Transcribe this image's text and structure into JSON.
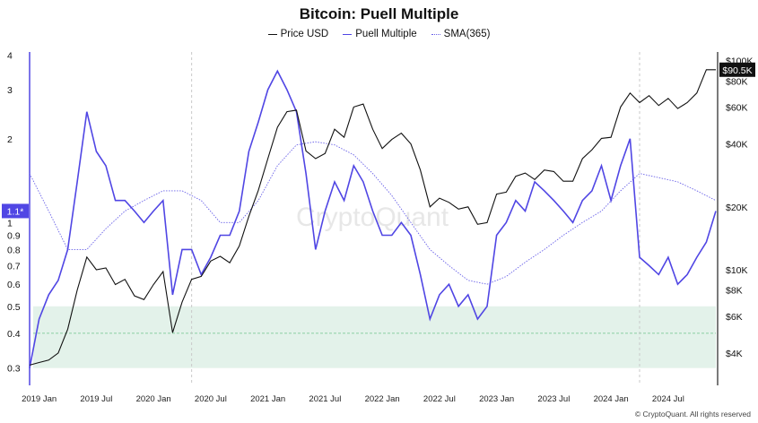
{
  "chart_data": {
    "type": "line",
    "title": "Bitcoin: Puell Multiple",
    "watermark": "CryptoQuant",
    "credit": "© CryptoQuant. All rights reserved",
    "legend": [
      {
        "name": "Price USD",
        "color": "#111111",
        "style": "solid"
      },
      {
        "name": "Puell Multiple",
        "color": "#5046e4",
        "style": "solid"
      },
      {
        "name": "SMA(365)",
        "color": "#6a62e8",
        "style": "dotted"
      }
    ],
    "x_ticks": [
      "2019 Jan",
      "2019 Jul",
      "2020 Jan",
      "2020 Jul",
      "2021 Jan",
      "2021 Jul",
      "2022 Jan",
      "2022 Jul",
      "2023 Jan",
      "2023 Jul",
      "2024 Jan",
      "2024 Jul"
    ],
    "x_range": [
      "2018-12",
      "2024-12"
    ],
    "left_axis": {
      "scale": "log",
      "range": [
        0.26,
        4.1
      ],
      "ticks": [
        "0.3",
        "0.4",
        "0.5",
        "0.6",
        "0.7",
        "0.8",
        "0.9",
        "1",
        "2",
        "3",
        "4"
      ]
    },
    "right_axis": {
      "scale": "log",
      "range": [
        2800,
        110000
      ],
      "ticks": [
        "$4K",
        "$6K",
        "$8K",
        "$10K",
        "$20K",
        "$40K",
        "$60K",
        "$80K",
        "$100K"
      ]
    },
    "left_marker": {
      "label": "1.1*",
      "value": 1.1
    },
    "right_marker": {
      "label": "$90.5K",
      "value": 90500
    },
    "shaded_band": {
      "from": 0.3,
      "to": 0.5,
      "color": "#e3f2ea",
      "midline": 0.4
    },
    "halving_lines": [
      "2020-05",
      "2024-04"
    ],
    "series": [
      {
        "name": "Price USD",
        "x": [
          "2018-12",
          "2019-01",
          "2019-02",
          "2019-03",
          "2019-04",
          "2019-05",
          "2019-06",
          "2019-07",
          "2019-08",
          "2019-09",
          "2019-10",
          "2019-11",
          "2019-12",
          "2020-01",
          "2020-02",
          "2020-03",
          "2020-04",
          "2020-05",
          "2020-06",
          "2020-07",
          "2020-08",
          "2020-09",
          "2020-10",
          "2020-11",
          "2020-12",
          "2021-01",
          "2021-02",
          "2021-03",
          "2021-04",
          "2021-05",
          "2021-06",
          "2021-07",
          "2021-08",
          "2021-09",
          "2021-10",
          "2021-11",
          "2021-12",
          "2022-01",
          "2022-02",
          "2022-03",
          "2022-04",
          "2022-05",
          "2022-06",
          "2022-07",
          "2022-08",
          "2022-09",
          "2022-10",
          "2022-11",
          "2022-12",
          "2023-01",
          "2023-02",
          "2023-03",
          "2023-04",
          "2023-05",
          "2023-06",
          "2023-07",
          "2023-08",
          "2023-09",
          "2023-10",
          "2023-11",
          "2023-12",
          "2024-01",
          "2024-02",
          "2024-03",
          "2024-04",
          "2024-05",
          "2024-06",
          "2024-07",
          "2024-08",
          "2024-09",
          "2024-10",
          "2024-11",
          "2024-12"
        ],
        "values": [
          3500,
          3600,
          3700,
          4000,
          5200,
          8000,
          11500,
          10000,
          10200,
          8500,
          9000,
          7500,
          7200,
          8500,
          9800,
          5000,
          7000,
          9000,
          9300,
          11000,
          11600,
          10800,
          13000,
          18000,
          24000,
          34000,
          48000,
          57000,
          58000,
          37000,
          34000,
          36000,
          47000,
          43000,
          60000,
          62000,
          47000,
          38000,
          42000,
          45000,
          40000,
          30000,
          20000,
          22000,
          21000,
          19500,
          20000,
          16500,
          16800,
          23000,
          23500,
          28000,
          29000,
          27000,
          30000,
          29500,
          26500,
          26500,
          34000,
          37500,
          42500,
          43000,
          60000,
          70000,
          63000,
          68000,
          61000,
          66000,
          59000,
          63000,
          70000,
          90500,
          90500
        ]
      },
      {
        "name": "Puell Multiple",
        "x": [
          "2018-12",
          "2019-01",
          "2019-02",
          "2019-03",
          "2019-04",
          "2019-05",
          "2019-06",
          "2019-07",
          "2019-08",
          "2019-09",
          "2019-10",
          "2019-11",
          "2019-12",
          "2020-01",
          "2020-02",
          "2020-03",
          "2020-04",
          "2020-05",
          "2020-06",
          "2020-07",
          "2020-08",
          "2020-09",
          "2020-10",
          "2020-11",
          "2020-12",
          "2021-01",
          "2021-02",
          "2021-03",
          "2021-04",
          "2021-05",
          "2021-06",
          "2021-07",
          "2021-08",
          "2021-09",
          "2021-10",
          "2021-11",
          "2021-12",
          "2022-01",
          "2022-02",
          "2022-03",
          "2022-04",
          "2022-05",
          "2022-06",
          "2022-07",
          "2022-08",
          "2022-09",
          "2022-10",
          "2022-11",
          "2022-12",
          "2023-01",
          "2023-02",
          "2023-03",
          "2023-04",
          "2023-05",
          "2023-06",
          "2023-07",
          "2023-08",
          "2023-09",
          "2023-10",
          "2023-11",
          "2023-12",
          "2024-01",
          "2024-02",
          "2024-03",
          "2024-04",
          "2024-05",
          "2024-06",
          "2024-07",
          "2024-08",
          "2024-09",
          "2024-10",
          "2024-11",
          "2024-12"
        ],
        "values": [
          0.3,
          0.45,
          0.55,
          0.62,
          0.8,
          1.4,
          2.5,
          1.8,
          1.6,
          1.2,
          1.2,
          1.1,
          1.0,
          1.1,
          1.2,
          0.55,
          0.8,
          0.8,
          0.65,
          0.75,
          0.9,
          0.9,
          1.1,
          1.8,
          2.3,
          3.0,
          3.5,
          3.0,
          2.5,
          1.5,
          0.8,
          1.1,
          1.4,
          1.2,
          1.6,
          1.4,
          1.1,
          0.9,
          0.9,
          1.0,
          0.9,
          0.65,
          0.45,
          0.55,
          0.6,
          0.5,
          0.55,
          0.45,
          0.5,
          0.9,
          1.0,
          1.2,
          1.1,
          1.4,
          1.3,
          1.2,
          1.1,
          1.0,
          1.2,
          1.3,
          1.6,
          1.2,
          1.6,
          2.0,
          0.75,
          0.7,
          0.65,
          0.75,
          0.6,
          0.65,
          0.75,
          0.85,
          1.1
        ]
      },
      {
        "name": "SMA(365)",
        "x": [
          "2018-12",
          "2019-02",
          "2019-04",
          "2019-06",
          "2019-08",
          "2019-10",
          "2019-12",
          "2020-02",
          "2020-04",
          "2020-06",
          "2020-08",
          "2020-10",
          "2020-12",
          "2021-02",
          "2021-04",
          "2021-06",
          "2021-08",
          "2021-10",
          "2021-12",
          "2022-02",
          "2022-04",
          "2022-06",
          "2022-08",
          "2022-10",
          "2022-12",
          "2023-02",
          "2023-04",
          "2023-06",
          "2023-08",
          "2023-10",
          "2023-12",
          "2024-02",
          "2024-04",
          "2024-06",
          "2024-08",
          "2024-10",
          "2024-12"
        ],
        "values": [
          1.5,
          1.1,
          0.8,
          0.8,
          0.95,
          1.1,
          1.2,
          1.3,
          1.3,
          1.2,
          1.0,
          1.0,
          1.2,
          1.6,
          1.9,
          1.95,
          1.9,
          1.75,
          1.5,
          1.25,
          1.0,
          0.8,
          0.7,
          0.62,
          0.6,
          0.64,
          0.72,
          0.8,
          0.9,
          1.0,
          1.1,
          1.3,
          1.5,
          1.45,
          1.4,
          1.3,
          1.2
        ]
      }
    ]
  }
}
